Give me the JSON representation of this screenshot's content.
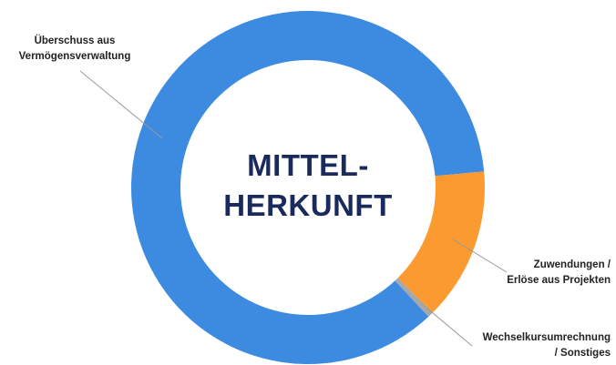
{
  "chart_data": {
    "type": "donut",
    "title": "MITTEL-\nHERKUNFT",
    "categories": [
      "Überschuss aus\nVermögensverwaltung",
      "Zuwendungen /\nErlöse aus Projekten",
      "Wechselkursumrechnung\n/ Sonstiges"
    ],
    "values": [
      85.5,
      14,
      0.5
    ],
    "colors": [
      "#3d8be0",
      "#fa9a30",
      "#a8a8a8"
    ],
    "start_angle": 137
  }
}
